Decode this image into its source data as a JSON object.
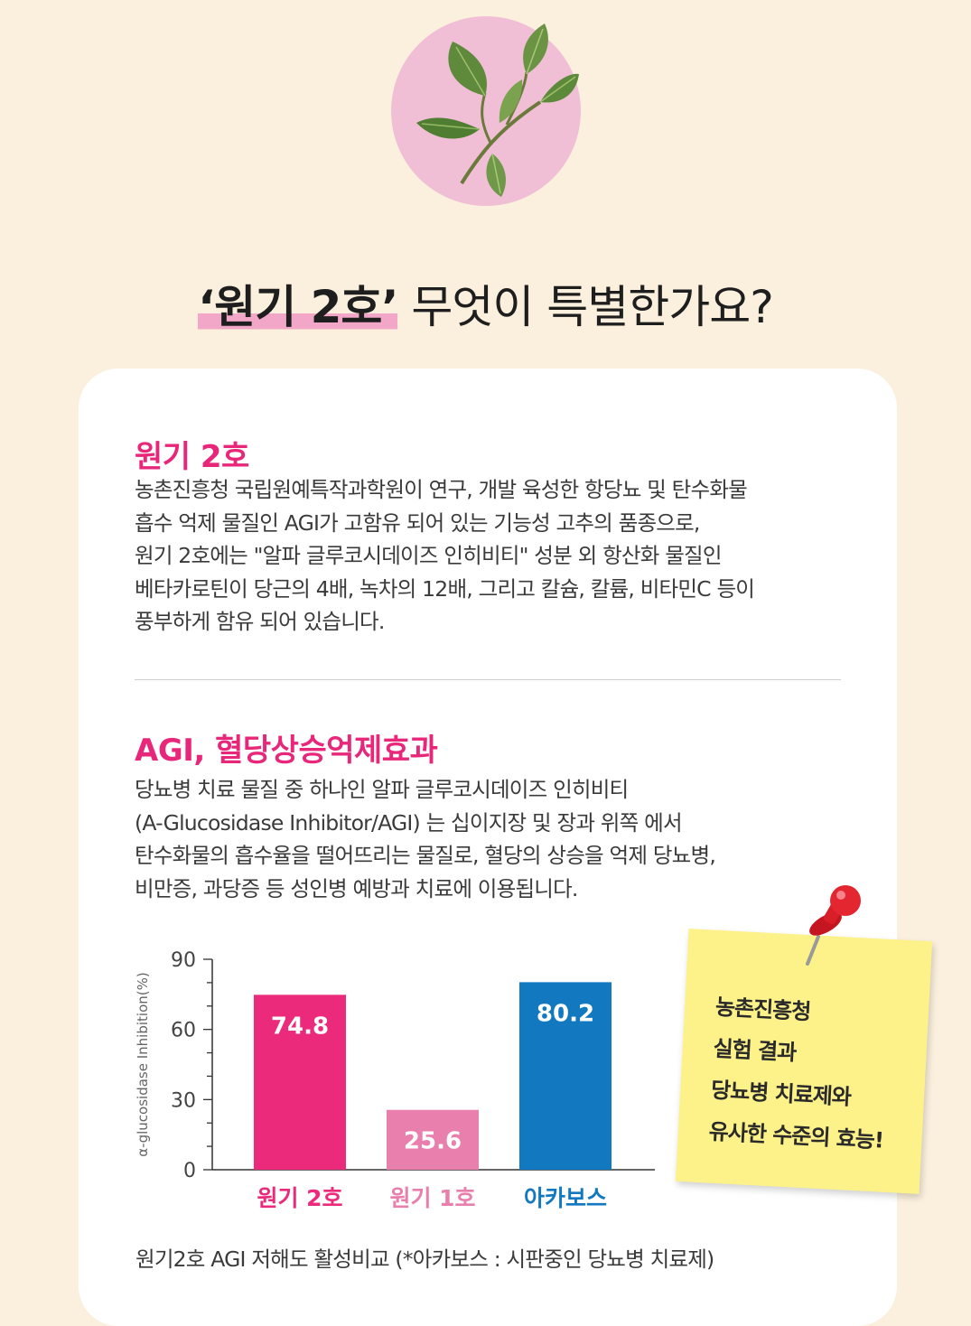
{
  "headline": {
    "highlight": "‘원기 2호’",
    "rest": " 무엇이 특별한가요?"
  },
  "section1": {
    "title": "원기 2호",
    "lines": [
      "농촌진흥청 국립원예특작과학원이 연구, 개발 육성한 항당뇨 및 탄수화물",
      "흡수 억제 물질인 AGI가 고함유 되어 있는 기능성 고추의 품종으로,",
      "원기 2호에는 \"알파 글루코시데이즈 인히비티\" 성분 외 항산화 물질인",
      "베타카로틴이 당근의 4배, 녹차의 12배, 그리고 칼슘, 칼륨, 비타민C 등이",
      "풍부하게 함유 되어 있습니다."
    ]
  },
  "section2": {
    "title": "AGI, 혈당상승억제효과",
    "lines": [
      "당뇨병 치료 물질 중 하나인 알파 글루코시데이즈 인히비티",
      "(A-Glucosidase Inhibitor/AGI) 는 십이지장 및 장과 위쪽 에서",
      "탄수화물의 흡수율을 떨어뜨리는 물질로, 혈당의 상승을 억제 당뇨병,",
      "비만증, 과당증 등 성인병 예방과 치료에 이용됩니다."
    ]
  },
  "chart_data": {
    "type": "bar",
    "categories": [
      "원기 2호",
      "원기 1호",
      "아카보스"
    ],
    "values": [
      74.8,
      25.6,
      80.2
    ],
    "value_labels": [
      "74.8",
      "25.6",
      "80.2"
    ],
    "ylabel": "α-glucosidase Inhibition(%)",
    "ylim": [
      0,
      90
    ],
    "yticks": [
      0,
      30,
      60,
      90
    ],
    "colors": [
      "#ec2a7c",
      "#e97fad",
      "#1279c0"
    ],
    "grid": false
  },
  "caption": "원기2호 AGI 저해도 활성비교 (*아카보스 : 시판중인 당뇨병 치료제)",
  "note": {
    "lines": [
      "농촌진흥청",
      "실험 결과",
      "당뇨병 치료제와",
      "유사한 수준의 효능!"
    ],
    "color": "#fdf28a"
  },
  "icons": {
    "hero": "leaf-icon",
    "pin": "push-pin-icon"
  }
}
